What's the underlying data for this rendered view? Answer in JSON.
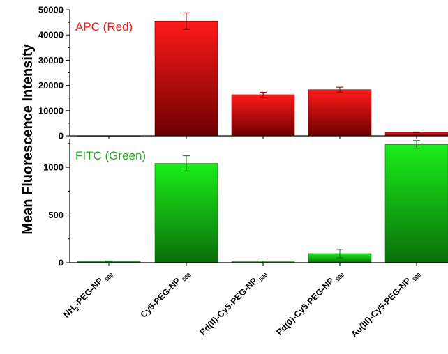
{
  "chart_data": {
    "type": "bar",
    "ylabel": "Mean Fluorescence Intensity",
    "categories": [
      {
        "base": "NH",
        "sub1": "2",
        "mid": "-PEG-NP ",
        "sub2": "500"
      },
      {
        "base": "Cy5-PEG-NP ",
        "sub1": "",
        "mid": "",
        "sub2": "500"
      },
      {
        "base": "Pd(II)-Cy5-PEG-NP ",
        "sub1": "",
        "mid": "",
        "sub2": "500"
      },
      {
        "base": "Pd(0)-Cy5-PEG-NP ",
        "sub1": "",
        "mid": "",
        "sub2": "500"
      },
      {
        "base": "Au(III)-Cy5-PEG-NP ",
        "sub1": "",
        "mid": "",
        "sub2": "500"
      }
    ],
    "panels": [
      {
        "label": "APC (Red)",
        "label_color": "#ff1a1a",
        "bar_color_top": "#ff1a1a",
        "bar_color_bottom": "#6e0000",
        "ylim": [
          0,
          50000
        ],
        "yticks": [
          0,
          10000,
          20000,
          30000,
          40000,
          50000
        ],
        "values": [
          0,
          45500,
          16300,
          18300,
          1400
        ],
        "errors": [
          0,
          3300,
          1000,
          1000,
          150
        ]
      },
      {
        "label": "FITC (Green)",
        "label_color": "#22aa22",
        "bar_color_top": "#1aee1a",
        "bar_color_bottom": "#0a6e0a",
        "ylim": [
          0,
          1300
        ],
        "yticks": [
          0,
          500,
          1000
        ],
        "values": [
          15,
          1040,
          10,
          95,
          1240
        ],
        "errors": [
          4,
          80,
          8,
          45,
          40
        ]
      }
    ]
  }
}
